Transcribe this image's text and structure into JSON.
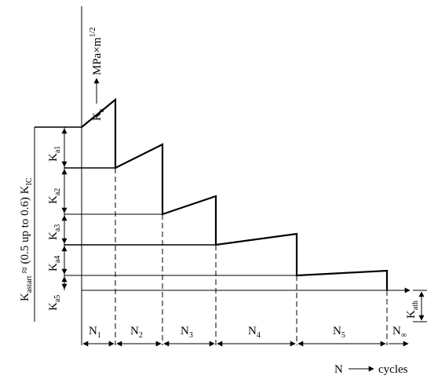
{
  "y_axis_label": {
    "main": "K",
    "sub": "a",
    "rest": "MPa×m",
    "sup": "1/2"
  },
  "x_axis_label": {
    "main": "N",
    "rest": "cycles"
  },
  "start_label": {
    "main": "K",
    "sub": "astart",
    "rest": "≈ (0.5 up to 0.6) K",
    "sub2": "IC"
  },
  "steps": [
    {
      "main": "K",
      "sub": "a1"
    },
    {
      "main": "K",
      "sub": "a2"
    },
    {
      "main": "K",
      "sub": "a3"
    },
    {
      "main": "K",
      "sub": "a4"
    },
    {
      "main": "K",
      "sub": "a5"
    }
  ],
  "threshold": {
    "main": "K",
    "sub": "ath"
  },
  "cycles": [
    {
      "main": "N",
      "sub": "1"
    },
    {
      "main": "N",
      "sub": "2"
    },
    {
      "main": "N",
      "sub": "3"
    },
    {
      "main": "N",
      "sub": "4"
    },
    {
      "main": "N",
      "sub": "5"
    },
    {
      "main": "N",
      "sub": "∞"
    }
  ],
  "colors": {
    "line": "#000000",
    "background": "#ffffff"
  }
}
